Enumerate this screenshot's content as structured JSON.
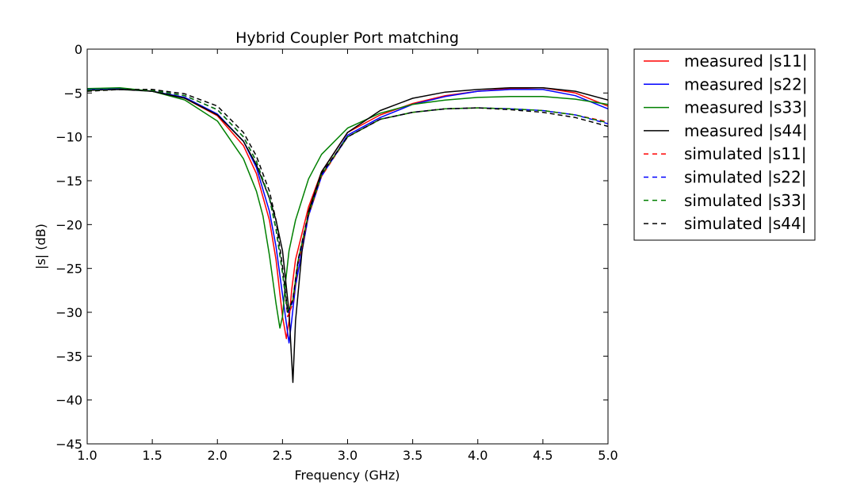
{
  "chart_data": {
    "type": "line",
    "title": "Hybrid Coupler Port matching",
    "xlabel": "Frequency (GHz)",
    "ylabel": "|s| (dB)",
    "xlim": [
      1.0,
      5.0
    ],
    "ylim": [
      -45,
      0
    ],
    "xticks": [
      "1.0",
      "1.5",
      "2.0",
      "2.5",
      "3.0",
      "3.5",
      "4.0",
      "4.5",
      "5.0"
    ],
    "yticks": [
      "0",
      "−5",
      "−10",
      "−15",
      "−20",
      "−25",
      "−30",
      "−35",
      "−40",
      "−45"
    ],
    "grid": false,
    "legend_position": "outside-right",
    "series": [
      {
        "name": "measured |s11|",
        "color": "#ff0000",
        "style": "solid",
        "x": [
          1.0,
          1.25,
          1.5,
          1.75,
          2.0,
          2.2,
          2.3,
          2.4,
          2.45,
          2.5,
          2.53,
          2.55,
          2.57,
          2.6,
          2.7,
          2.8,
          3.0,
          3.25,
          3.5,
          3.75,
          4.0,
          4.25,
          4.5,
          4.75,
          5.0
        ],
        "y": [
          -4.6,
          -4.5,
          -4.8,
          -5.6,
          -7.6,
          -11.0,
          -14.2,
          -19.5,
          -24.0,
          -30.5,
          -33.0,
          -31.0,
          -27.5,
          -24.0,
          -18.0,
          -14.0,
          -9.5,
          -7.5,
          -6.2,
          -5.3,
          -4.8,
          -4.5,
          -4.4,
          -5.0,
          -6.5
        ]
      },
      {
        "name": "measured |s22|",
        "color": "#0000ff",
        "style": "solid",
        "x": [
          1.0,
          1.25,
          1.5,
          1.75,
          2.0,
          2.2,
          2.3,
          2.4,
          2.45,
          2.5,
          2.55,
          2.57,
          2.6,
          2.7,
          2.8,
          3.0,
          3.25,
          3.5,
          3.75,
          4.0,
          4.25,
          4.5,
          4.75,
          5.0
        ],
        "y": [
          -4.6,
          -4.5,
          -4.8,
          -5.5,
          -7.4,
          -10.5,
          -13.5,
          -18.5,
          -22.5,
          -28.0,
          -33.5,
          -31.0,
          -27.0,
          -19.0,
          -14.5,
          -9.8,
          -7.8,
          -6.3,
          -5.4,
          -4.8,
          -4.6,
          -4.6,
          -5.3,
          -6.8
        ]
      },
      {
        "name": "measured |s33|",
        "color": "#008000",
        "style": "solid",
        "x": [
          1.0,
          1.25,
          1.5,
          1.75,
          2.0,
          2.2,
          2.3,
          2.35,
          2.4,
          2.45,
          2.48,
          2.5,
          2.52,
          2.55,
          2.6,
          2.7,
          2.8,
          3.0,
          3.25,
          3.5,
          3.75,
          4.0,
          4.25,
          4.5,
          4.75,
          5.0
        ],
        "y": [
          -4.5,
          -4.4,
          -4.8,
          -5.8,
          -8.2,
          -12.5,
          -16.2,
          -19.0,
          -23.5,
          -29.0,
          -31.8,
          -30.5,
          -27.0,
          -23.0,
          -19.5,
          -14.8,
          -12.0,
          -9.0,
          -7.3,
          -6.3,
          -5.8,
          -5.5,
          -5.4,
          -5.4,
          -5.7,
          -6.3
        ]
      },
      {
        "name": "measured |s44|",
        "color": "#000000",
        "style": "solid",
        "x": [
          1.0,
          1.25,
          1.5,
          1.75,
          2.0,
          2.2,
          2.3,
          2.4,
          2.45,
          2.5,
          2.55,
          2.58,
          2.6,
          2.65,
          2.7,
          2.8,
          3.0,
          3.25,
          3.5,
          3.75,
          4.0,
          4.25,
          4.5,
          4.75,
          5.0
        ],
        "y": [
          -4.7,
          -4.6,
          -4.8,
          -5.6,
          -7.5,
          -10.5,
          -13.2,
          -17.0,
          -19.5,
          -23.0,
          -30.0,
          -38.0,
          -31.0,
          -23.0,
          -18.5,
          -14.0,
          -9.5,
          -7.0,
          -5.6,
          -4.9,
          -4.6,
          -4.4,
          -4.4,
          -4.8,
          -5.8
        ]
      },
      {
        "name": "simulated |s11|",
        "color": "#ff0000",
        "style": "dashed",
        "x": [
          1.0,
          1.25,
          1.5,
          1.75,
          2.0,
          2.2,
          2.3,
          2.4,
          2.45,
          2.5,
          2.54,
          2.58,
          2.62,
          2.7,
          2.8,
          3.0,
          3.25,
          3.5,
          3.75,
          4.0,
          4.25,
          4.5,
          4.75,
          5.0
        ],
        "y": [
          -4.7,
          -4.6,
          -4.7,
          -5.3,
          -6.9,
          -10.0,
          -12.8,
          -17.0,
          -20.5,
          -25.5,
          -30.5,
          -29.0,
          -24.5,
          -19.0,
          -14.5,
          -10.0,
          -8.0,
          -7.2,
          -6.8,
          -6.7,
          -6.8,
          -7.0,
          -7.5,
          -8.3
        ]
      },
      {
        "name": "simulated |s22|",
        "color": "#0000ff",
        "style": "dashed",
        "x": [
          1.0,
          1.25,
          1.5,
          1.75,
          2.0,
          2.2,
          2.3,
          2.4,
          2.45,
          2.5,
          2.54,
          2.58,
          2.62,
          2.7,
          2.8,
          3.0,
          3.25,
          3.5,
          3.75,
          4.0,
          4.25,
          4.5,
          4.75,
          5.0
        ],
        "y": [
          -4.7,
          -4.6,
          -4.7,
          -5.3,
          -6.9,
          -10.0,
          -12.8,
          -17.0,
          -20.5,
          -25.5,
          -30.2,
          -28.8,
          -24.3,
          -18.9,
          -14.4,
          -10.0,
          -8.0,
          -7.2,
          -6.8,
          -6.7,
          -6.8,
          -7.0,
          -7.5,
          -8.5
        ]
      },
      {
        "name": "simulated |s33|",
        "color": "#008000",
        "style": "dashed",
        "x": [
          1.0,
          1.25,
          1.5,
          1.75,
          2.0,
          2.2,
          2.3,
          2.4,
          2.45,
          2.5,
          2.54,
          2.58,
          2.62,
          2.7,
          2.8,
          3.0,
          3.25,
          3.5,
          3.75,
          4.0,
          4.25,
          4.5,
          4.75,
          5.0
        ],
        "y": [
          -4.7,
          -4.6,
          -4.7,
          -5.3,
          -6.9,
          -10.0,
          -12.8,
          -17.0,
          -20.5,
          -25.5,
          -30.0,
          -28.6,
          -24.1,
          -18.8,
          -14.3,
          -10.0,
          -8.0,
          -7.2,
          -6.8,
          -6.7,
          -6.8,
          -7.0,
          -7.5,
          -8.4
        ]
      },
      {
        "name": "simulated |s44|",
        "color": "#000000",
        "style": "dashed",
        "x": [
          1.0,
          1.25,
          1.5,
          1.75,
          2.0,
          2.2,
          2.3,
          2.4,
          2.45,
          2.5,
          2.54,
          2.58,
          2.62,
          2.7,
          2.8,
          3.0,
          3.25,
          3.5,
          3.75,
          4.0,
          4.25,
          4.5,
          4.75,
          5.0
        ],
        "y": [
          -4.8,
          -4.6,
          -4.6,
          -5.1,
          -6.5,
          -9.5,
          -12.2,
          -16.2,
          -19.5,
          -24.8,
          -30.0,
          -28.5,
          -24.0,
          -18.7,
          -14.2,
          -10.0,
          -8.0,
          -7.2,
          -6.8,
          -6.7,
          -6.9,
          -7.2,
          -7.8,
          -8.8
        ]
      }
    ]
  }
}
